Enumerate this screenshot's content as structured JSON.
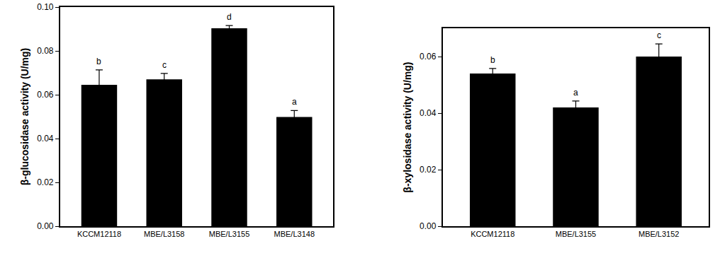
{
  "chart_data": [
    {
      "type": "bar",
      "y_label": "β-glucosidase activity (U/mg)",
      "categories": [
        "KCCM12118",
        "MBE/L3158",
        "MBE/L3155",
        "MBE/L3148"
      ],
      "values": [
        0.0645,
        0.067,
        0.0903,
        0.0498
      ],
      "errors": [
        0.0068,
        0.0027,
        0.0013,
        0.003
      ],
      "annotations": [
        "b",
        "c",
        "d",
        "a"
      ],
      "color": "#000000",
      "ylim": [
        0,
        0.1
      ],
      "yticks": [
        {
          "value": 0,
          "label": "0.00"
        },
        {
          "value": 0.02,
          "label": "0.02"
        },
        {
          "value": 0.04,
          "label": "0.04"
        },
        {
          "value": 0.06,
          "label": "0.06"
        },
        {
          "value": 0.08,
          "label": "0.08"
        },
        {
          "value": 0.1,
          "label": "0.10"
        }
      ],
      "grid": false
    },
    {
      "type": "bar",
      "y_label": "β-xylosidase activity (U/mg)",
      "categories": [
        "KCCM12118",
        "MBE/L3155",
        "MBE/L3152"
      ],
      "values": [
        0.054,
        0.042,
        0.06
      ],
      "errors": [
        0.0018,
        0.0023,
        0.0045
      ],
      "annotations": [
        "b",
        "a",
        "c"
      ],
      "color": "#000000",
      "ylim": [
        0,
        0.07
      ],
      "yticks": [
        {
          "value": 0,
          "label": "0.00"
        },
        {
          "value": 0.02,
          "label": "0.02"
        },
        {
          "value": 0.04,
          "label": "0.04"
        },
        {
          "value": 0.06,
          "label": "0.06"
        }
      ],
      "grid": false
    }
  ]
}
